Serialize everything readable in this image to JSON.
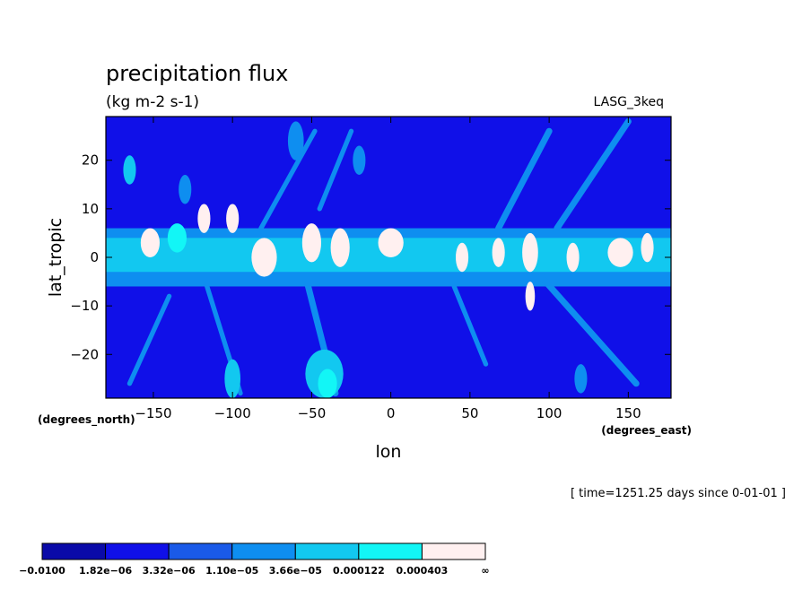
{
  "chart_data": {
    "type": "heatmap",
    "title": "precipitation flux",
    "units": "(kg m-2 s-1)",
    "run_label": "LASG_3keq",
    "xlabel": "lon",
    "ylabel": "lat_tropic",
    "x_units": "(degrees_east)",
    "y_units": "(degrees_north)",
    "time_note": "[ time=1251.25 days since 0-01-01 ]",
    "xlim": [
      -180,
      177
    ],
    "ylim": [
      -29,
      29
    ],
    "x_ticks": [
      -150,
      -100,
      -50,
      0,
      50,
      100,
      150
    ],
    "x_tick_labels": [
      "−150",
      "−100",
      "−50",
      "0",
      "50",
      "100",
      "150"
    ],
    "y_ticks": [
      20,
      10,
      0,
      -10,
      -20
    ],
    "y_tick_labels": [
      "20",
      "10",
      "0",
      "−10",
      "−20"
    ],
    "background_level": 1,
    "colorbar": {
      "colors": [
        "#0a0aa8",
        "#1010e8",
        "#1a5ae8",
        "#0e8ef0",
        "#12c8f0",
        "#12f6f6",
        "#fff0f0"
      ],
      "labels": [
        "−0.0100",
        "1.82e−06",
        "3.32e−06",
        "1.10e−05",
        "3.66e−05",
        "0.000122",
        "0.000403",
        "∞"
      ]
    },
    "features": [
      {
        "type": "band",
        "lon0": -180,
        "lon1": 177,
        "lat0": -6,
        "lat1": 6,
        "level": 3
      },
      {
        "type": "band",
        "lon0": -180,
        "lon1": 177,
        "lat0": -3,
        "lat1": 4,
        "level": 4
      },
      {
        "type": "blob",
        "lon": -152,
        "lat": 3,
        "rlon": 6,
        "rlat": 3,
        "level": 6
      },
      {
        "type": "blob",
        "lon": -135,
        "lat": 4,
        "rlon": 6,
        "rlat": 3,
        "level": 5
      },
      {
        "type": "blob",
        "lon": -118,
        "lat": 8,
        "rlon": 4,
        "rlat": 3,
        "level": 6
      },
      {
        "type": "blob",
        "lon": -100,
        "lat": 8,
        "rlon": 4,
        "rlat": 3,
        "level": 6
      },
      {
        "type": "blob",
        "lon": -80,
        "lat": 0,
        "rlon": 8,
        "rlat": 4,
        "level": 6
      },
      {
        "type": "blob",
        "lon": -50,
        "lat": 3,
        "rlon": 6,
        "rlat": 4,
        "level": 6
      },
      {
        "type": "blob",
        "lon": -32,
        "lat": 2,
        "rlon": 6,
        "rlat": 4,
        "level": 6
      },
      {
        "type": "blob",
        "lon": 0,
        "lat": 3,
        "rlon": 8,
        "rlat": 3,
        "level": 6
      },
      {
        "type": "blob",
        "lon": 45,
        "lat": 0,
        "rlon": 4,
        "rlat": 3,
        "level": 6
      },
      {
        "type": "blob",
        "lon": 68,
        "lat": 1,
        "rlon": 4,
        "rlat": 3,
        "level": 6
      },
      {
        "type": "blob",
        "lon": 88,
        "lat": 1,
        "rlon": 5,
        "rlat": 4,
        "level": 6
      },
      {
        "type": "blob",
        "lon": 88,
        "lat": -8,
        "rlon": 3,
        "rlat": 3,
        "level": 6
      },
      {
        "type": "blob",
        "lon": 115,
        "lat": 0,
        "rlon": 4,
        "rlat": 3,
        "level": 6
      },
      {
        "type": "blob",
        "lon": 145,
        "lat": 1,
        "rlon": 8,
        "rlat": 3,
        "level": 6
      },
      {
        "type": "blob",
        "lon": 162,
        "lat": 2,
        "rlon": 4,
        "rlat": 3,
        "level": 6
      },
      {
        "type": "blob",
        "lon": -42,
        "lat": -24,
        "rlon": 12,
        "rlat": 5,
        "level": 4
      },
      {
        "type": "blob",
        "lon": -40,
        "lat": -26,
        "rlon": 6,
        "rlat": 3,
        "level": 5
      },
      {
        "type": "blob",
        "lon": -165,
        "lat": 18,
        "rlon": 4,
        "rlat": 3,
        "level": 4
      },
      {
        "type": "blob",
        "lon": -130,
        "lat": 14,
        "rlon": 4,
        "rlat": 3,
        "level": 3
      },
      {
        "type": "blob",
        "lon": -60,
        "lat": 24,
        "rlon": 5,
        "rlat": 4,
        "level": 3
      },
      {
        "type": "blob",
        "lon": -100,
        "lat": -25,
        "rlon": 5,
        "rlat": 4,
        "level": 4
      },
      {
        "type": "blob",
        "lon": -20,
        "lat": 20,
        "rlon": 4,
        "rlat": 3,
        "level": 3
      },
      {
        "type": "blob",
        "lon": 120,
        "lat": -25,
        "rlon": 4,
        "rlat": 3,
        "level": 3
      },
      {
        "type": "streak",
        "lon0": -60,
        "lat0": 4,
        "lon1": -35,
        "lat1": -28,
        "width": 4,
        "level": 3
      },
      {
        "type": "streak",
        "lon0": -118,
        "lat0": -4,
        "lon1": -95,
        "lat1": -28,
        "width": 3,
        "level": 3
      },
      {
        "type": "streak",
        "lon0": 95,
        "lat0": -4,
        "lon1": 155,
        "lat1": -26,
        "width": 4,
        "level": 3
      },
      {
        "type": "streak",
        "lon0": 68,
        "lat0": 6,
        "lon1": 100,
        "lat1": 26,
        "width": 4,
        "level": 3
      },
      {
        "type": "streak",
        "lon0": 105,
        "lat0": 6,
        "lon1": 150,
        "lat1": 28,
        "width": 4,
        "level": 3
      },
      {
        "type": "streak",
        "lon0": -82,
        "lat0": 6,
        "lon1": -48,
        "lat1": 26,
        "width": 3,
        "level": 3
      },
      {
        "type": "streak",
        "lon0": -45,
        "lat0": 10,
        "lon1": -25,
        "lat1": 26,
        "width": 3,
        "level": 3
      },
      {
        "type": "streak",
        "lon0": -140,
        "lat0": -8,
        "lon1": -165,
        "lat1": -26,
        "width": 3,
        "level": 3
      },
      {
        "type": "streak",
        "lon0": 40,
        "lat0": -6,
        "lon1": 60,
        "lat1": -22,
        "width": 3,
        "level": 3
      }
    ]
  }
}
